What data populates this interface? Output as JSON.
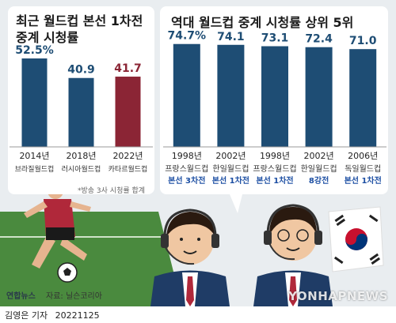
{
  "left_chart": {
    "title_line1": "최근 월드컵 본선 1차전",
    "title_line2": "중계 시청률",
    "note": "*방송 3사 시청률 합계"
  },
  "right_chart": {
    "title": "역대 월드컵 중계 시청률 상위 5위"
  },
  "chart_data": [
    {
      "type": "bar",
      "title": "최근 월드컵 본선 1차전 중계 시청률",
      "categories": [
        "2014년",
        "2018년",
        "2022년"
      ],
      "subcategories": [
        "브라질월드컵",
        "러시아월드컵",
        "카타르월드컵"
      ],
      "values": [
        52.5,
        40.9,
        41.7
      ],
      "value_labels": [
        "52.5%",
        "40.9",
        "41.7"
      ],
      "colors": [
        "#1e4d74",
        "#1e4d74",
        "#8b2535"
      ],
      "ylim": [
        0,
        60
      ]
    },
    {
      "type": "bar",
      "title": "역대 월드컵 중계 시청률 상위 5위",
      "categories": [
        "1998년",
        "2002년",
        "1998년",
        "2002년",
        "2006년"
      ],
      "subcategories": [
        "프랑스월드컵",
        "한일월드컵",
        "프랑스월드컵",
        "한일월드컵",
        "독일월드컵"
      ],
      "stages": [
        "본선 3차전",
        "본선 1차전",
        "본선 1차전",
        "8강전",
        "본선 1차전"
      ],
      "values": [
        74.7,
        74.1,
        73.1,
        72.4,
        71.0
      ],
      "value_labels": [
        "74.7%",
        "74.1",
        "73.1",
        "72.4",
        "71.0"
      ],
      "colors": [
        "#1e4d74",
        "#1e4d74",
        "#1e4d74",
        "#1e4d74",
        "#1e4d74"
      ],
      "ylim": [
        0,
        82
      ]
    }
  ],
  "footer": {
    "logo": "연합뉴스",
    "source": "자료: 닐슨코리아",
    "watermark": "YONHAPNEWS",
    "reporter": "김영은 기자",
    "date": "20221125"
  },
  "colors": {
    "bar_blue": "#1e4d74",
    "bar_red": "#8b2535",
    "stage_blue": "#1d4fa3",
    "background": "#e9edf0"
  }
}
